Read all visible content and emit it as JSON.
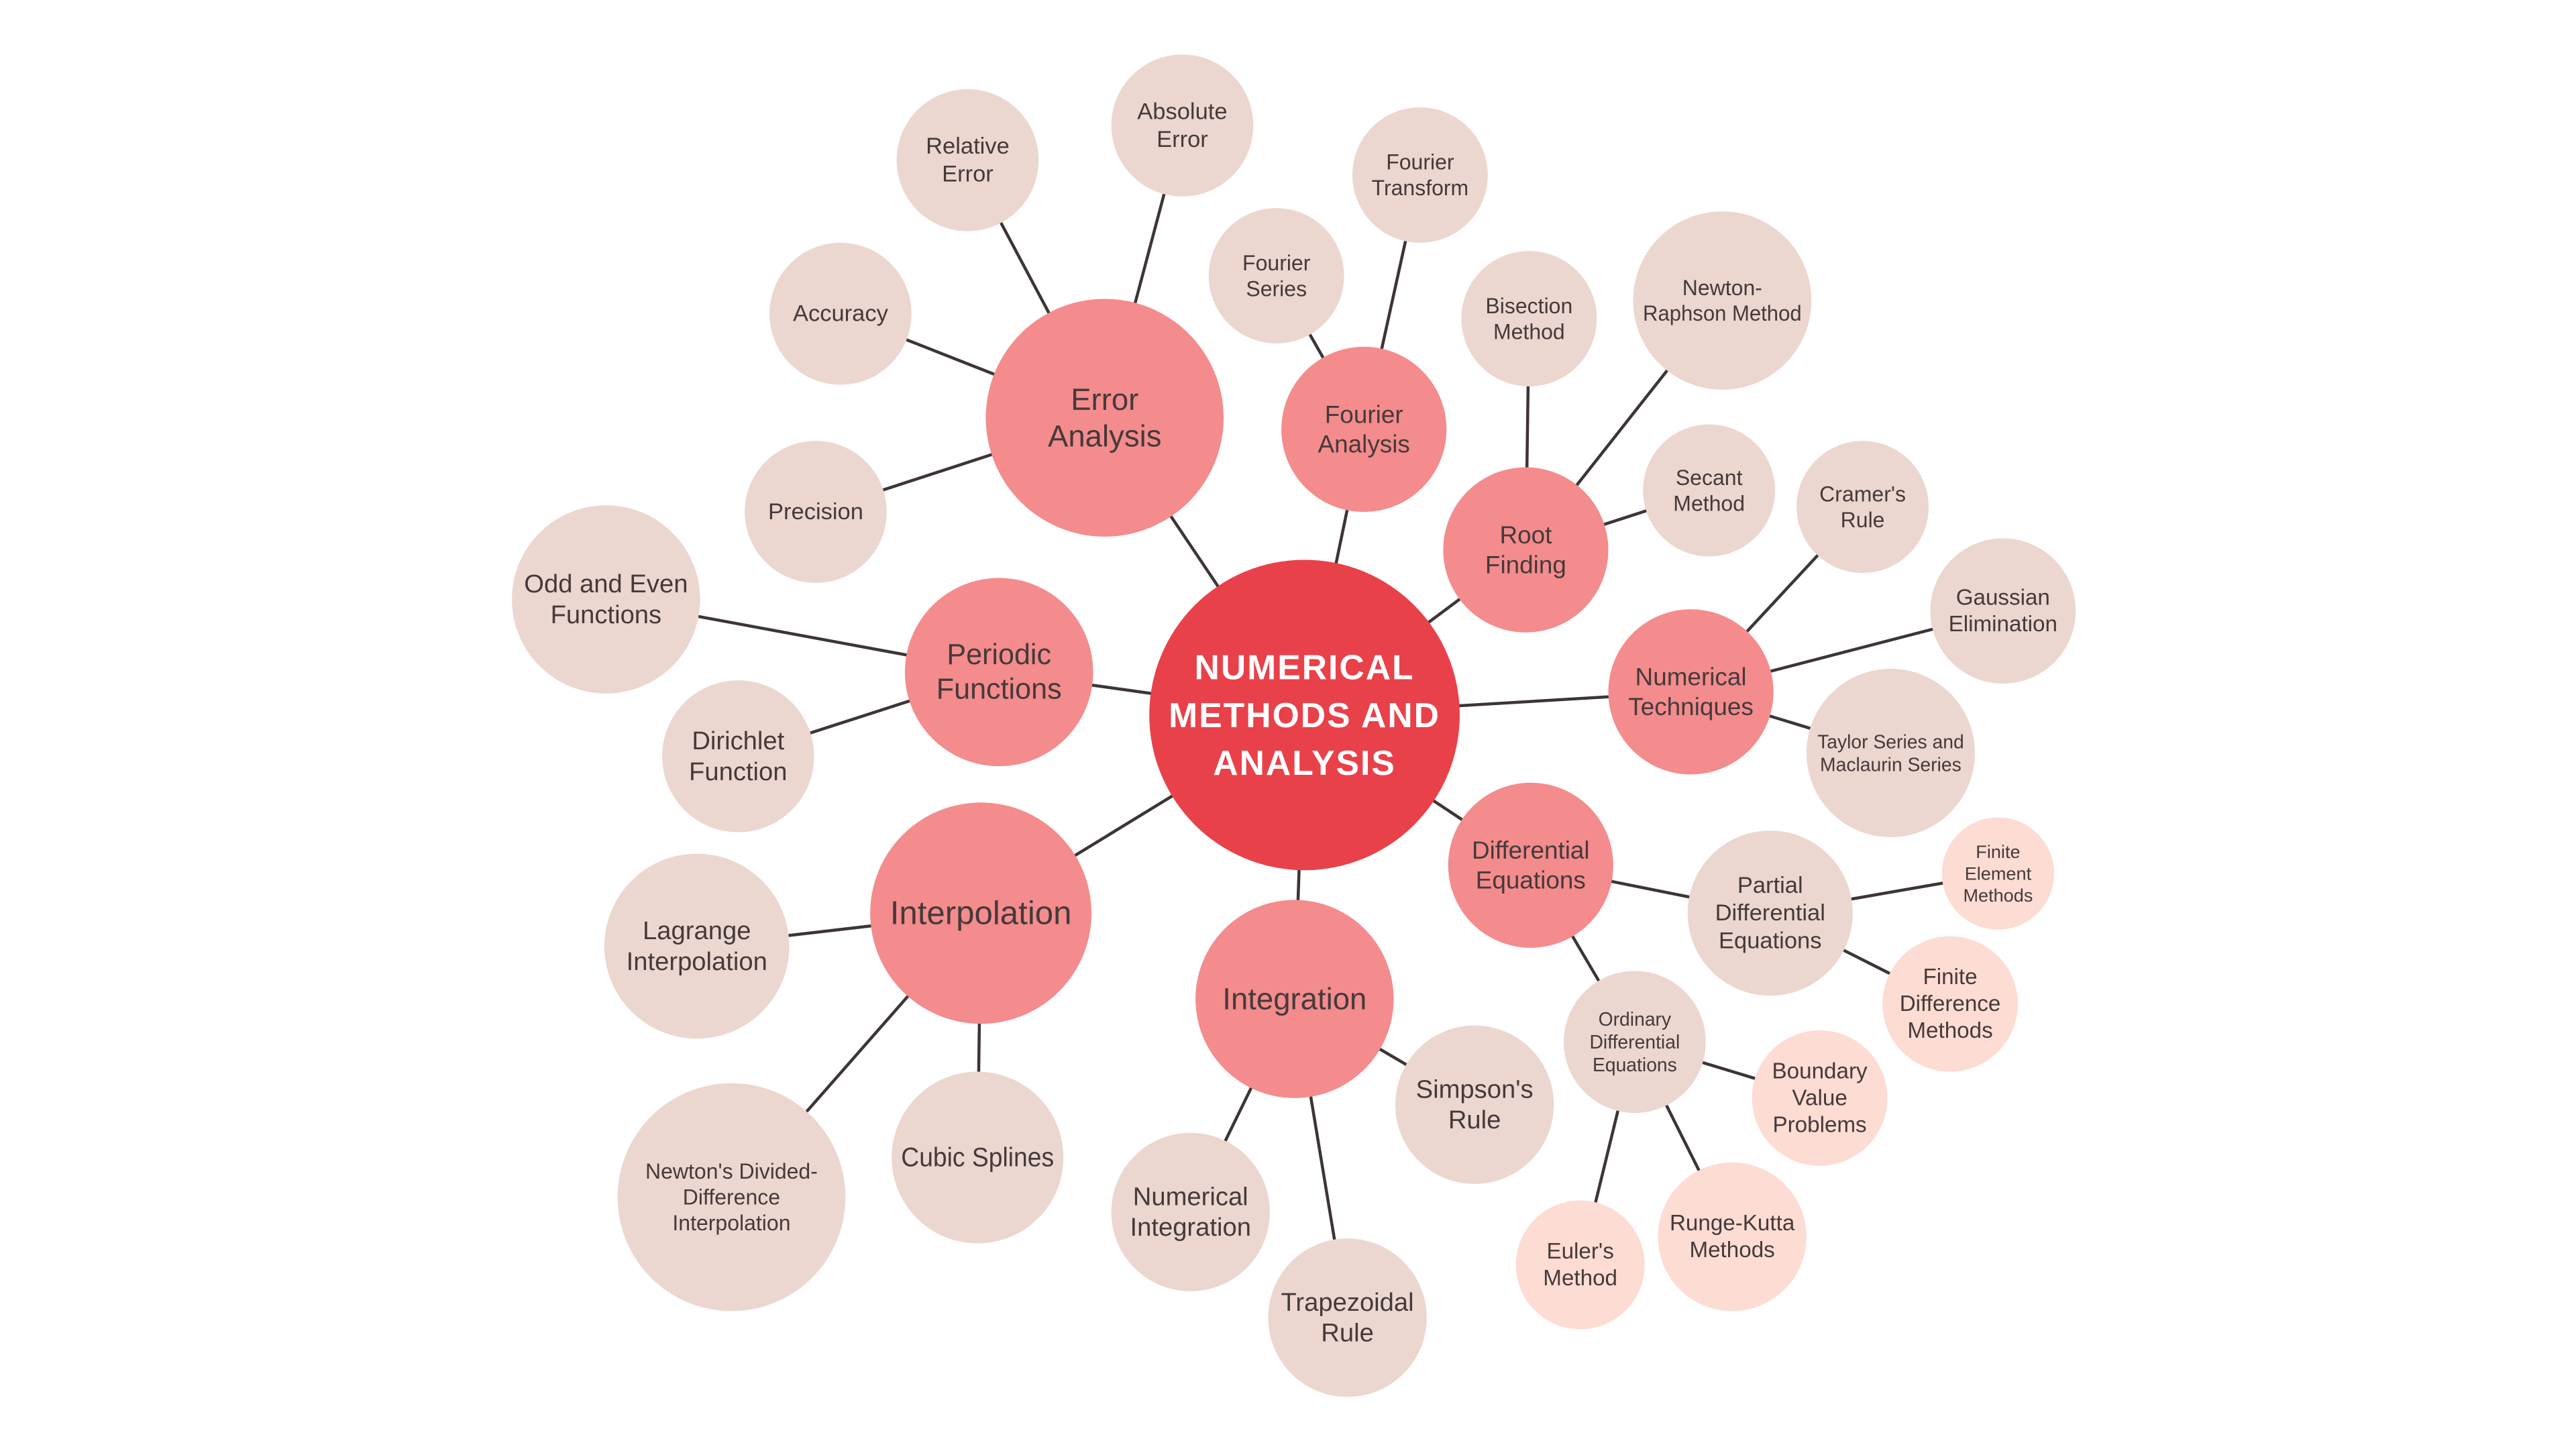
{
  "colors": {
    "root": "#e8414a",
    "topic": "#f48b8d",
    "leaf": "#ecd6d0",
    "subleaf": "#fddcd3",
    "edge": "#3d3535",
    "text": "#453a3a",
    "root_text": "#ffffff"
  },
  "root": {
    "id": "root",
    "label": [
      "NUMERICAL",
      "METHODS AND",
      "ANALYSIS"
    ]
  },
  "topics": [
    {
      "id": "error-analysis",
      "label": [
        "Error",
        "Analysis"
      ],
      "children": [
        {
          "id": "relative-error",
          "label": [
            "Relative",
            "Error"
          ]
        },
        {
          "id": "absolute-error",
          "label": [
            "Absolute",
            "Error"
          ]
        },
        {
          "id": "accuracy",
          "label": [
            "Accuracy"
          ]
        },
        {
          "id": "precision",
          "label": [
            "Precision"
          ]
        }
      ]
    },
    {
      "id": "fourier-analysis",
      "label": [
        "Fourier",
        "Analysis"
      ],
      "children": [
        {
          "id": "fourier-series",
          "label": [
            "Fourier",
            "Series"
          ]
        },
        {
          "id": "fourier-transform",
          "label": [
            "Fourier",
            "Transform"
          ]
        }
      ]
    },
    {
      "id": "root-finding",
      "label": [
        "Root",
        "Finding"
      ],
      "children": [
        {
          "id": "bisection-method",
          "label": [
            "Bisection",
            "Method"
          ]
        },
        {
          "id": "newton-raphson-method",
          "label": [
            "Newton-",
            "Raphson Method"
          ]
        },
        {
          "id": "secant-method",
          "label": [
            "Secant",
            "Method"
          ]
        }
      ]
    },
    {
      "id": "numerical-techniques",
      "label": [
        "Numerical",
        "Techniques"
      ],
      "children": [
        {
          "id": "cramers-rule",
          "label": [
            "Cramer's",
            "Rule"
          ]
        },
        {
          "id": "gaussian-elimination",
          "label": [
            "Gaussian",
            "Elimination"
          ]
        },
        {
          "id": "taylor-series",
          "label": [
            "Taylor Series and",
            "Maclaurin Series"
          ]
        }
      ]
    },
    {
      "id": "differential-equations",
      "label": [
        "Differential",
        "Equations"
      ],
      "children": [
        {
          "id": "partial-differential-equations",
          "label": [
            "Partial",
            "Differential",
            "Equations"
          ],
          "children": [
            {
              "id": "finite-element-methods",
              "label": [
                "Finite",
                "Element",
                "Methods"
              ]
            },
            {
              "id": "finite-difference-methods",
              "label": [
                "Finite",
                "Difference",
                "Methods"
              ]
            }
          ]
        },
        {
          "id": "ordinary-differential-equations",
          "label": [
            "Ordinary",
            "Differential",
            "Equations"
          ],
          "children": [
            {
              "id": "boundary-value-problems",
              "label": [
                "Boundary",
                "Value",
                "Problems"
              ]
            },
            {
              "id": "runge-kutta-methods",
              "label": [
                "Runge-Kutta",
                "Methods"
              ]
            },
            {
              "id": "eulers-method",
              "label": [
                "Euler's",
                "Method"
              ]
            }
          ]
        }
      ]
    },
    {
      "id": "integration",
      "label": [
        "Integration"
      ],
      "children": [
        {
          "id": "simpsons-rule",
          "label": [
            "Simpson's",
            "Rule"
          ]
        },
        {
          "id": "trapezoidal-rule",
          "label": [
            "Trapezoidal",
            "Rule"
          ]
        },
        {
          "id": "numerical-integration",
          "label": [
            "Numerical",
            "Integration"
          ]
        }
      ]
    },
    {
      "id": "interpolation",
      "label": [
        "Interpolation"
      ],
      "children": [
        {
          "id": "lagrange-interpolation",
          "label": [
            "Lagrange",
            "Interpolation"
          ]
        },
        {
          "id": "newtons-divided-difference",
          "label": [
            "Newton's Divided-",
            "Difference",
            "Interpolation"
          ]
        },
        {
          "id": "cubic-splines",
          "label": [
            "Cubic Splines"
          ]
        }
      ]
    },
    {
      "id": "periodic-functions",
      "label": [
        "Periodic",
        "Functions"
      ],
      "children": [
        {
          "id": "odd-and-even-functions",
          "label": [
            "Odd and Even",
            "Functions"
          ]
        },
        {
          "id": "dirichlet-function",
          "label": [
            "Dirichlet",
            "Function"
          ]
        }
      ]
    }
  ]
}
